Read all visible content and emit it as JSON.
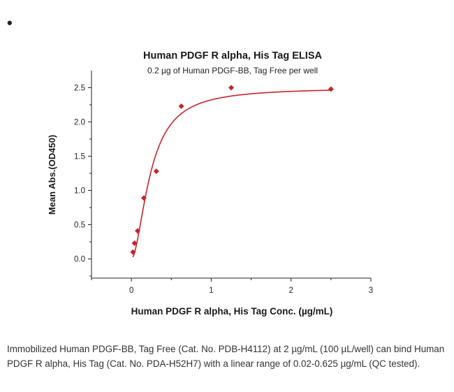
{
  "page": {
    "bullet": "•",
    "caption": "Immobilized Human PDGF-BB, Tag Free (Cat. No. PDB-H4112) at 2 µg/mL (100 µL/well) can bind Human PDGF R alpha, His Tag (Cat. No. PDA-H52H7) with a linear range of 0.02-0.625 µg/mL (QC tested)."
  },
  "chart_data": {
    "type": "scatter",
    "title": "Human PDGF R alpha, His Tag ELISA",
    "subtitle": "0.2 µg of Human PDGF-BB, Tag Free per well",
    "xlabel": "Human PDGF R alpha, His Tag Conc. (µg/mL)",
    "ylabel": "Mean Abs.(OD450)",
    "xlim": [
      -0.5,
      3
    ],
    "ylim": [
      -0.28,
      2.75
    ],
    "x_ticks": [
      0,
      1,
      2,
      3
    ],
    "y_ticks": [
      0.0,
      0.5,
      1.0,
      1.5,
      2.0,
      2.5
    ],
    "x_tick_labels": [
      "0",
      "1",
      "2",
      "3"
    ],
    "y_tick_labels": [
      "0.0",
      "0.5",
      "1.0",
      "1.5",
      "2.0",
      "2.5"
    ],
    "grid": false,
    "marker_color": "#c8242b",
    "series": [
      {
        "points": [
          {
            "x": 0.0195,
            "y": 0.1
          },
          {
            "x": 0.039,
            "y": 0.23
          },
          {
            "x": 0.078,
            "y": 0.41
          },
          {
            "x": 0.156,
            "y": 0.89
          },
          {
            "x": 0.3125,
            "y": 1.28
          },
          {
            "x": 0.625,
            "y": 2.23
          },
          {
            "x": 1.25,
            "y": 2.5
          },
          {
            "x": 2.5,
            "y": 2.48
          }
        ],
        "fit_curve": true
      }
    ]
  }
}
